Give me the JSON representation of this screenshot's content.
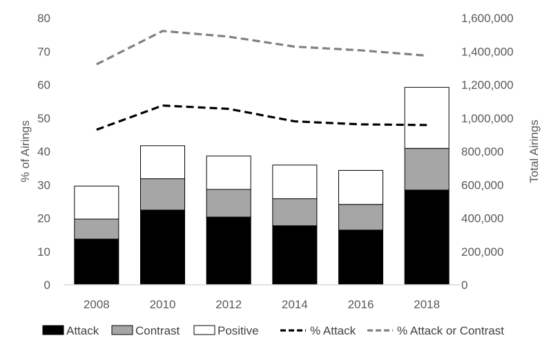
{
  "chart_data": {
    "type": "bar",
    "categories": [
      "2008",
      "2010",
      "2012",
      "2014",
      "2016",
      "2018"
    ],
    "bar_stack": "stacked",
    "series": [
      {
        "name": "Attack",
        "axis": "left",
        "kind": "bar",
        "color": "#000000",
        "values": [
          13.7,
          22.4,
          20.3,
          17.7,
          16.4,
          28.4
        ]
      },
      {
        "name": "Contrast",
        "axis": "left",
        "kind": "bar",
        "color": "#a6a6a6",
        "values": [
          6.0,
          9.4,
          8.3,
          8.1,
          7.7,
          12.5
        ]
      },
      {
        "name": "Positive",
        "axis": "left",
        "kind": "bar",
        "color": "#ffffff",
        "values": [
          9.9,
          9.9,
          10.0,
          10.1,
          10.2,
          18.3
        ]
      },
      {
        "name": "% Attack",
        "axis": "right",
        "kind": "line",
        "dash": "dashed",
        "color": "#000000",
        "values": [
          930000,
          1075000,
          1055000,
          980000,
          962000,
          958000
        ]
      },
      {
        "name": "% Attack or Contrast",
        "axis": "right",
        "kind": "line",
        "dash": "dashed",
        "color": "#808080",
        "values": [
          1322000,
          1522000,
          1488000,
          1428000,
          1406000,
          1374000
        ]
      }
    ],
    "y_left": {
      "label": "% of Airings",
      "lim": [
        0,
        80
      ],
      "ticks": [
        "0",
        "10",
        "20",
        "30",
        "40",
        "50",
        "60",
        "70",
        "80"
      ]
    },
    "y_right": {
      "label": "Total Airings",
      "lim": [
        0,
        1600000
      ],
      "ticks": [
        "0",
        "200,000",
        "400,000",
        "600,000",
        "800,000",
        "1,000,000",
        "1,200,000",
        "1,400,000",
        "1,600,000"
      ]
    },
    "xlabel": "",
    "title": "",
    "grid": false,
    "legend": {
      "position": "bottom",
      "items": [
        {
          "label": "Attack",
          "kind": "box",
          "color": "#000000"
        },
        {
          "label": "Contrast",
          "kind": "box",
          "color": "#a6a6a6"
        },
        {
          "label": "Positive",
          "kind": "box",
          "color": "#ffffff"
        },
        {
          "label": "% Attack",
          "kind": "line",
          "color": "#000000"
        },
        {
          "label": "% Attack or Contrast",
          "kind": "line",
          "color": "#808080"
        }
      ]
    }
  }
}
